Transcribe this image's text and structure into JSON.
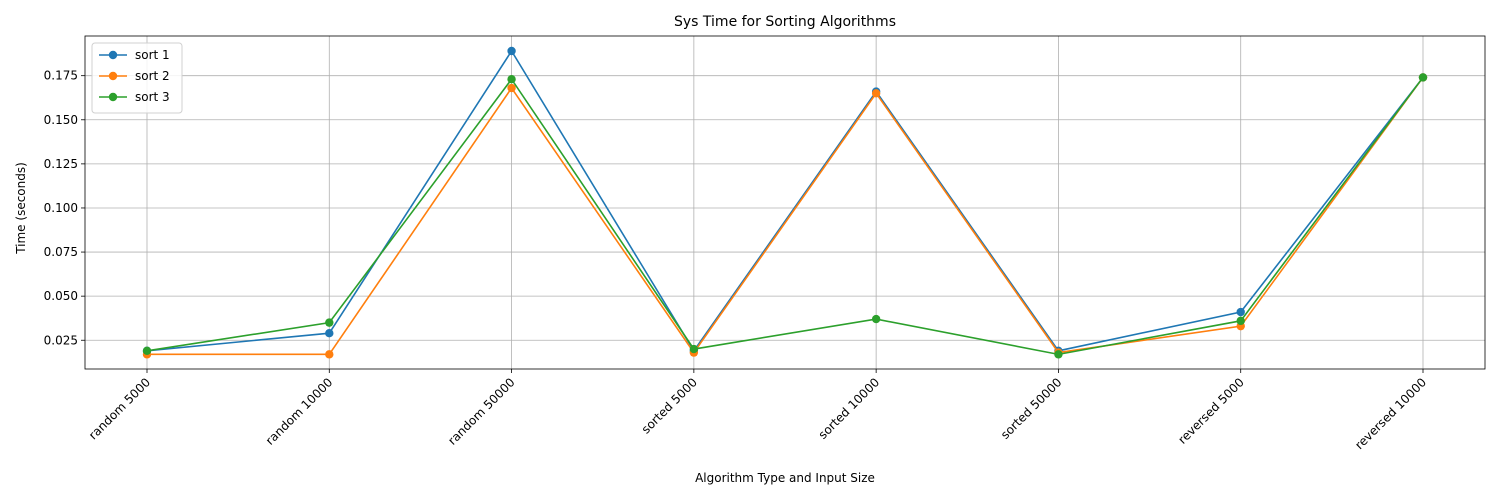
{
  "chart_data": {
    "type": "line",
    "title": "Sys Time for Sorting Algorithms",
    "xlabel": "Algorithm Type and Input Size",
    "ylabel": "Time (seconds)",
    "categories": [
      "random 5000",
      "random 10000",
      "random 50000",
      "sorted 5000",
      "sorted 10000",
      "sorted 50000",
      "reversed 5000",
      "reversed 10000"
    ],
    "ylim": [
      0.0087,
      0.1975
    ],
    "yticks": [
      0.025,
      0.05,
      0.075,
      0.1,
      0.125,
      0.15,
      0.175
    ],
    "ytick_labels": [
      "0.025",
      "0.050",
      "0.075",
      "0.100",
      "0.125",
      "0.150",
      "0.175"
    ],
    "grid": true,
    "legend_position": "upper-left",
    "series": [
      {
        "name": "sort 1",
        "color": "#1f77b4",
        "values": [
          0.019,
          0.029,
          0.189,
          0.019,
          0.166,
          0.019,
          0.041,
          0.174
        ]
      },
      {
        "name": "sort 2",
        "color": "#ff7f0e",
        "values": [
          0.017,
          0.017,
          0.168,
          0.018,
          0.165,
          0.018,
          0.033,
          0.174
        ]
      },
      {
        "name": "sort 3",
        "color": "#2ca02c",
        "values": [
          0.019,
          0.035,
          0.173,
          0.02,
          0.037,
          0.017,
          0.036,
          0.174
        ]
      }
    ]
  }
}
